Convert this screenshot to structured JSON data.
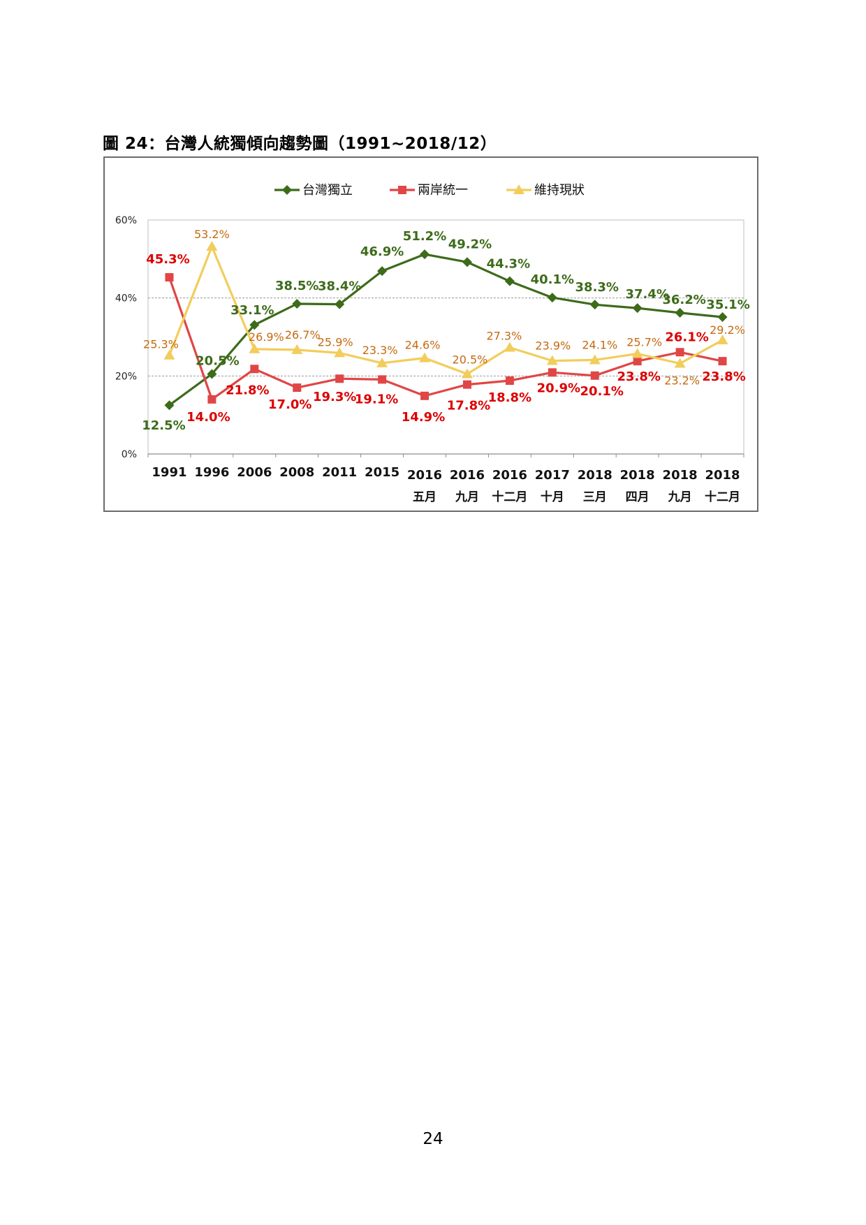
{
  "figure_title": "圖 24：台灣人統獨傾向趨勢圖（1991~2018/12）",
  "page_number": "24",
  "chart_data": {
    "type": "line",
    "title": "",
    "xlabel": "",
    "ylabel": "",
    "ylim": [
      0,
      60
    ],
    "yticks": [
      {
        "value": 0,
        "label": "0%"
      },
      {
        "value": 20,
        "label": "20%"
      },
      {
        "value": 40,
        "label": "40%"
      },
      {
        "value": 60,
        "label": "60%"
      }
    ],
    "grid": true,
    "legend_position": "top-center",
    "categories": [
      {
        "year": "1991",
        "sub": ""
      },
      {
        "year": "1996",
        "sub": ""
      },
      {
        "year": "2006",
        "sub": ""
      },
      {
        "year": "2008",
        "sub": ""
      },
      {
        "year": "2011",
        "sub": ""
      },
      {
        "year": "2015",
        "sub": ""
      },
      {
        "year": "2016",
        "sub": "五月"
      },
      {
        "year": "2016",
        "sub": "九月"
      },
      {
        "year": "2016",
        "sub": "十二月"
      },
      {
        "year": "2017",
        "sub": "十月"
      },
      {
        "year": "2018",
        "sub": "三月"
      },
      {
        "year": "2018",
        "sub": "四月"
      },
      {
        "year": "2018",
        "sub": "九月"
      },
      {
        "year": "2018",
        "sub": "十二月"
      }
    ],
    "series": [
      {
        "name": "台灣獨立",
        "color": "#3d6b1a",
        "label_color": "#3d6b1a",
        "marker": "diamond",
        "values": [
          12.5,
          20.5,
          33.1,
          38.5,
          38.4,
          46.9,
          51.2,
          49.2,
          44.3,
          40.1,
          38.3,
          37.4,
          36.2,
          35.1
        ],
        "labels": [
          "12.5%",
          "20.5%",
          "33.1%",
          "38.5%",
          "38.4%",
          "46.9%",
          "51.2%",
          "49.2%",
          "44.3%",
          "40.1%",
          "38.3%",
          "37.4%",
          "36.2%",
          "35.1%"
        ]
      },
      {
        "name": "兩岸統一",
        "color": "#e04646",
        "label_color": "#dd0000",
        "marker": "square",
        "values": [
          45.3,
          14.0,
          21.8,
          17.0,
          19.3,
          19.1,
          14.9,
          17.8,
          18.8,
          20.9,
          20.1,
          23.8,
          26.1,
          23.8
        ],
        "labels": [
          "45.3%",
          "14.0%",
          "21.8%",
          "17.0%",
          "19.3%",
          "19.1%",
          "14.9%",
          "17.8%",
          "18.8%",
          "20.9%",
          "20.1%",
          "23.8%",
          "26.1%",
          "23.8%"
        ]
      },
      {
        "name": "維持現狀",
        "color": "#f2cd5c",
        "label_color": "#c46a10",
        "marker": "triangle",
        "values": [
          25.3,
          53.2,
          26.9,
          26.7,
          25.9,
          23.3,
          24.6,
          20.5,
          27.3,
          23.9,
          24.1,
          25.7,
          23.2,
          29.2
        ],
        "labels": [
          "25.3%",
          "53.2%",
          "26.9%",
          "26.7%",
          "25.9%",
          "23.3%",
          "24.6%",
          "20.5%",
          "27.3%",
          "23.9%",
          "24.1%",
          "25.7%",
          "23.2%",
          "29.2%"
        ]
      }
    ]
  }
}
